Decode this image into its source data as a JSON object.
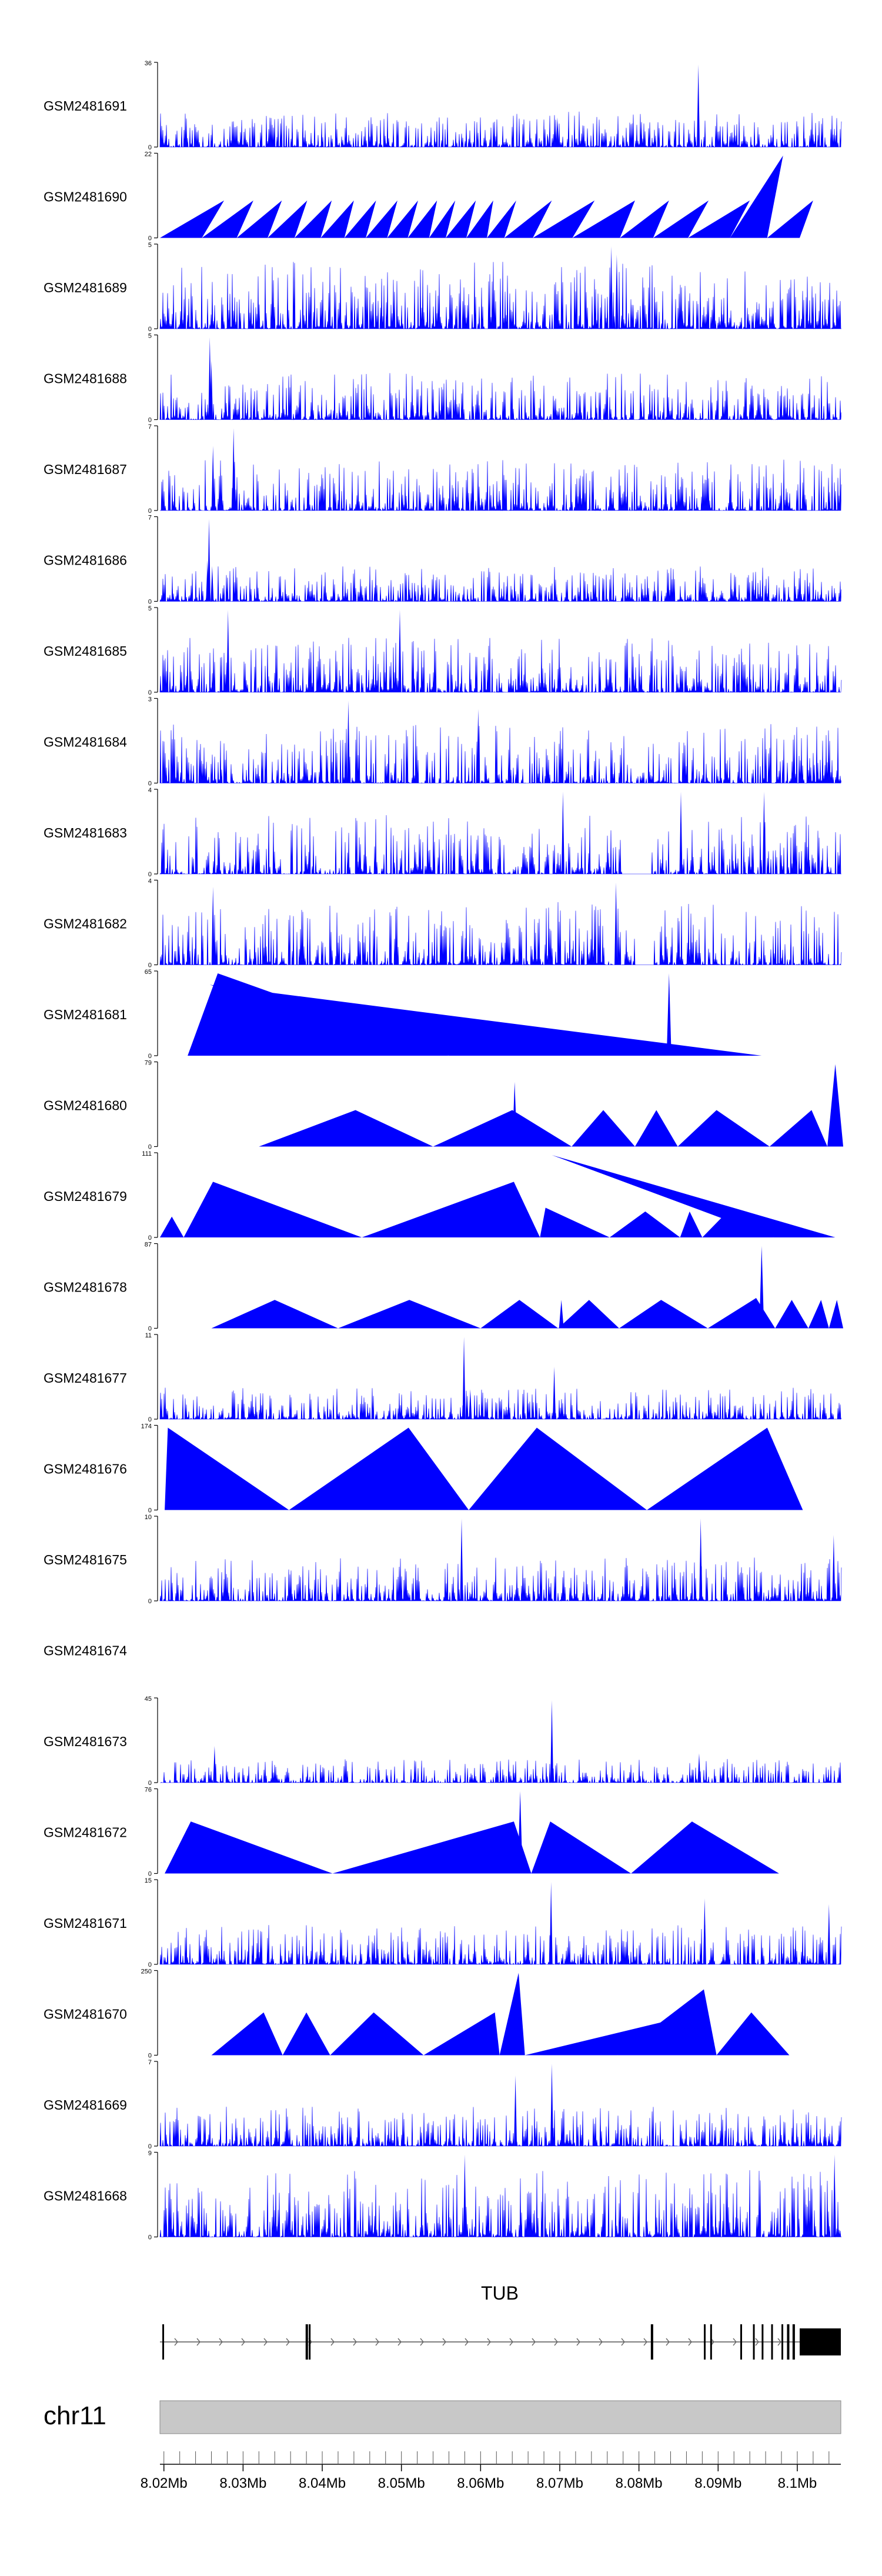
{
  "gene": {
    "name": "TUB"
  },
  "chromosome": "chr11",
  "axis": {
    "ticks": [
      "8.02Mb",
      "8.03Mb",
      "8.04Mb",
      "8.05Mb",
      "8.06Mb",
      "8.07Mb",
      "8.08Mb",
      "8.09Mb",
      "8.1Mb"
    ]
  },
  "colors": {
    "signal": "#0000ff",
    "ideogram": "#c8c8c8",
    "gene": "#000000"
  },
  "chart_data": {
    "type": "area",
    "title": "Coverage tracks over TUB locus",
    "xlabel": "",
    "xlim": [
      8.0195,
      8.1055
    ],
    "x_unit": "Mb",
    "tracks": [
      {
        "name": "GSM2481691",
        "ymax": 36,
        "ymin": 0,
        "style": "noise",
        "density": 1.0,
        "fill": 0.45,
        "peaks": [
          {
            "x": 8.0697,
            "y": 13
          },
          {
            "x": 8.0875,
            "y": 36
          },
          {
            "x": 8.0685,
            "y": 5
          }
        ]
      },
      {
        "name": "GSM2481690",
        "ymax": 22,
        "ymin": 0,
        "style": "tri",
        "breaks": [
          8.0195,
          8.0248,
          8.0292,
          8.0331,
          8.0365,
          8.0398,
          8.0428,
          8.0455,
          8.0482,
          8.0508,
          8.0535,
          8.0556,
          8.0582,
          8.0608,
          8.063,
          8.0666,
          8.0716,
          8.0776,
          8.0818,
          8.0862,
          8.0915,
          8.0962,
          8.1003,
          8.1048
        ],
        "peaks": [
          {
            "x": 8.0276,
            "y": 10
          },
          {
            "x": 8.0313,
            "y": 10
          },
          {
            "x": 8.0349,
            "y": 10
          },
          {
            "x": 8.0381,
            "y": 10
          },
          {
            "x": 8.0412,
            "y": 10
          },
          {
            "x": 8.044,
            "y": 10
          },
          {
            "x": 8.0468,
            "y": 10
          },
          {
            "x": 8.0495,
            "y": 10
          },
          {
            "x": 8.0521,
            "y": 10
          },
          {
            "x": 8.0545,
            "y": 10
          },
          {
            "x": 8.0568,
            "y": 10
          },
          {
            "x": 8.0594,
            "y": 10
          },
          {
            "x": 8.0616,
            "y": 10
          },
          {
            "x": 8.0645,
            "y": 10
          },
          {
            "x": 8.069,
            "y": 10
          },
          {
            "x": 8.0744,
            "y": 10
          },
          {
            "x": 8.0795,
            "y": 10
          },
          {
            "x": 8.0838,
            "y": 10
          },
          {
            "x": 8.0888,
            "y": 10
          },
          {
            "x": 8.094,
            "y": 10
          },
          {
            "x": 8.0982,
            "y": 22
          },
          {
            "x": 8.102,
            "y": 10
          }
        ]
      },
      {
        "name": "GSM2481689",
        "ymax": 5,
        "ymin": 0,
        "style": "noise",
        "density": 1.0,
        "fill": 0.85,
        "peaks": [
          {
            "x": 8.0765,
            "y": 5
          },
          {
            "x": 8.0772,
            "y": 4.5
          }
        ]
      },
      {
        "name": "GSM2481688",
        "ymax": 5,
        "ymin": 0,
        "style": "noise",
        "density": 1.0,
        "fill": 0.6,
        "peaks": [
          {
            "x": 8.0258,
            "y": 5
          },
          {
            "x": 8.026,
            "y": 3.6
          }
        ]
      },
      {
        "name": "GSM2481687",
        "ymax": 7,
        "ymin": 0,
        "style": "noise",
        "density": 1.0,
        "fill": 0.65,
        "peaks": [
          {
            "x": 8.0288,
            "y": 7
          },
          {
            "x": 8.0262,
            "y": 5.5
          }
        ]
      },
      {
        "name": "GSM2481686",
        "ymax": 7,
        "ymin": 0,
        "style": "noise",
        "density": 1.0,
        "fill": 0.45,
        "peaks": [
          {
            "x": 8.0257,
            "y": 7
          },
          {
            "x": 8.0255,
            "y": 3.5
          },
          {
            "x": 8.0261,
            "y": 3
          }
        ]
      },
      {
        "name": "GSM2481685",
        "ymax": 5,
        "ymin": 0,
        "style": "noise",
        "density": 1.0,
        "fill": 0.7,
        "peaks": [
          {
            "x": 8.0281,
            "y": 5
          },
          {
            "x": 8.0498,
            "y": 5
          }
        ]
      },
      {
        "name": "GSM2481684",
        "ymax": 3,
        "ymin": 0,
        "style": "noise",
        "density": 0.95,
        "fill": 0.75,
        "peaks": [
          {
            "x": 8.0433,
            "y": 3
          },
          {
            "x": 8.0597,
            "y": 2.7
          }
        ]
      },
      {
        "name": "GSM2481683",
        "ymax": 4,
        "ymin": 0,
        "style": "noise",
        "density": 0.92,
        "fill": 0.75,
        "gaps": [
          [
            8.0778,
            8.0815
          ]
        ],
        "peaks": [
          {
            "x": 8.0704,
            "y": 4
          },
          {
            "x": 8.0853,
            "y": 4
          },
          {
            "x": 8.0958,
            "y": 4
          }
        ]
      },
      {
        "name": "GSM2481682",
        "ymax": 4,
        "ymin": 0,
        "style": "noise",
        "density": 0.95,
        "fill": 0.8,
        "gaps": [
          [
            8.0796,
            8.0818
          ]
        ],
        "peaks": [
          {
            "x": 8.0771,
            "y": 4
          },
          {
            "x": 8.0262,
            "y": 3.8
          }
        ]
      },
      {
        "name": "GSM2481681",
        "ymax": 65,
        "ymin": 0,
        "style": "tri",
        "breaks": [
          8.023,
          8.056,
          8.0955
        ],
        "peaks": [
          {
            "x": 8.0268,
            "y": 65
          },
          {
            "x": 8.0258,
            "y": 56
          },
          {
            "x": 8.0838,
            "y": 65
          }
        ]
      },
      {
        "name": "GSM2481680",
        "ymax": 79,
        "ymin": 0,
        "style": "tri",
        "breaks": [
          8.032,
          8.054,
          8.0715,
          8.0795,
          8.0849,
          8.0965,
          8.1038,
          8.1058
        ],
        "peaks": [
          {
            "x": 8.0442,
            "y": 35
          },
          {
            "x": 8.064,
            "y": 35
          },
          {
            "x": 8.0755,
            "y": 35
          },
          {
            "x": 8.0822,
            "y": 35
          },
          {
            "x": 8.0898,
            "y": 35
          },
          {
            "x": 8.1018,
            "y": 35
          },
          {
            "x": 8.1048,
            "y": 79
          },
          {
            "x": 8.0443,
            "y": 22
          },
          {
            "x": 8.0643,
            "y": 62
          }
        ]
      },
      {
        "name": "GSM2481679",
        "ymax": 111,
        "ymin": 0,
        "style": "tri",
        "breaks": [
          8.0195,
          8.0225,
          8.045,
          8.0675,
          8.0763,
          8.0852,
          8.088,
          8.097,
          8.1048
        ],
        "peaks": [
          {
            "x": 8.021,
            "y": 28
          },
          {
            "x": 8.0262,
            "y": 75
          },
          {
            "x": 8.0642,
            "y": 75
          },
          {
            "x": 8.0682,
            "y": 40
          },
          {
            "x": 8.0808,
            "y": 35
          },
          {
            "x": 8.0864,
            "y": 35
          },
          {
            "x": 8.0912,
            "y": 35
          },
          {
            "x": 8.069,
            "y": 111
          }
        ]
      },
      {
        "name": "GSM2481678",
        "ymax": 87,
        "ymin": 0,
        "style": "tri",
        "breaks": [
          8.026,
          8.042,
          8.06,
          8.0698,
          8.0775,
          8.0887,
          8.0972,
          8.1014,
          8.104,
          8.1058
        ],
        "peaks": [
          {
            "x": 8.034,
            "y": 30
          },
          {
            "x": 8.051,
            "y": 30
          },
          {
            "x": 8.0649,
            "y": 30
          },
          {
            "x": 8.0737,
            "y": 30
          },
          {
            "x": 8.0828,
            "y": 30
          },
          {
            "x": 8.0948,
            "y": 32
          },
          {
            "x": 8.0993,
            "y": 30
          },
          {
            "x": 8.103,
            "y": 30
          },
          {
            "x": 8.105,
            "y": 30
          },
          {
            "x": 8.0955,
            "y": 87
          },
          {
            "x": 8.0702,
            "y": 30
          }
        ]
      },
      {
        "name": "GSM2481677",
        "ymax": 11,
        "ymin": 0,
        "style": "noise",
        "density": 1.0,
        "fill": 0.4,
        "peaks": [
          {
            "x": 8.0579,
            "y": 11
          },
          {
            "x": 8.0693,
            "y": 7
          },
          {
            "x": 8.0587,
            "y": 4
          }
        ]
      },
      {
        "name": "GSM2481676",
        "ymax": 174,
        "ymin": 0,
        "style": "tri",
        "breaks": [
          8.0201,
          8.0358,
          8.0585,
          8.081,
          8.1007
        ],
        "peaks": [
          {
            "x": 8.0205,
            "y": 174
          },
          {
            "x": 8.0509,
            "y": 174
          },
          {
            "x": 8.0671,
            "y": 174
          },
          {
            "x": 8.0962,
            "y": 174
          }
        ]
      },
      {
        "name": "GSM2481675",
        "ymax": 10,
        "ymin": 0,
        "style": "noise",
        "density": 1.0,
        "fill": 0.55,
        "peaks": [
          {
            "x": 8.0576,
            "y": 10
          },
          {
            "x": 8.0878,
            "y": 10
          },
          {
            "x": 8.1046,
            "y": 8
          }
        ]
      },
      {
        "name": "GSM2481674",
        "empty": true
      },
      {
        "name": "GSM2481673",
        "ymax": 45,
        "ymin": 0,
        "style": "noise",
        "density": 0.9,
        "fill": 0.3,
        "peaks": [
          {
            "x": 8.069,
            "y": 45
          },
          {
            "x": 8.0264,
            "y": 20
          },
          {
            "x": 8.0876,
            "y": 16
          }
        ]
      },
      {
        "name": "GSM2481672",
        "ymax": 76,
        "ymin": 0,
        "style": "tri",
        "breaks": [
          8.0201,
          8.0413,
          8.0664,
          8.079,
          8.0977
        ],
        "peaks": [
          {
            "x": 8.0234,
            "y": 48
          },
          {
            "x": 8.0642,
            "y": 48
          },
          {
            "x": 8.0688,
            "y": 48
          },
          {
            "x": 8.0867,
            "y": 48
          },
          {
            "x": 8.065,
            "y": 76
          }
        ]
      },
      {
        "name": "GSM2481671",
        "ymax": 15,
        "ymin": 0,
        "style": "noise",
        "density": 1.0,
        "fill": 0.5,
        "peaks": [
          {
            "x": 8.0689,
            "y": 15
          },
          {
            "x": 8.0883,
            "y": 12
          },
          {
            "x": 8.104,
            "y": 11
          }
        ]
      },
      {
        "name": "GSM2481670",
        "ymax": 250,
        "ymin": 0,
        "style": "tri",
        "breaks": [
          8.026,
          8.035,
          8.041,
          8.0528,
          8.0624,
          8.0656,
          8.0773,
          8.0898,
          8.099
        ],
        "peaks": [
          {
            "x": 8.0326,
            "y": 130
          },
          {
            "x": 8.038,
            "y": 130
          },
          {
            "x": 8.0465,
            "y": 130
          },
          {
            "x": 8.0618,
            "y": 130
          },
          {
            "x": 8.0648,
            "y": 250
          },
          {
            "x": 8.088,
            "y": 130
          },
          {
            "x": 8.0882,
            "y": 200
          },
          {
            "x": 8.0942,
            "y": 130
          }
        ]
      },
      {
        "name": "GSM2481669",
        "ymax": 7,
        "ymin": 0,
        "style": "noise",
        "density": 1.0,
        "fill": 0.5,
        "peaks": [
          {
            "x": 8.069,
            "y": 7
          },
          {
            "x": 8.0644,
            "y": 6
          }
        ]
      },
      {
        "name": "GSM2481668",
        "ymax": 9,
        "ymin": 0,
        "style": "noise",
        "density": 1.0,
        "fill": 0.85,
        "peaks": [
          {
            "x": 8.058,
            "y": 9
          },
          {
            "x": 8.1047,
            "y": 9
          }
        ]
      }
    ]
  },
  "gene_model": {
    "start": 8.0195,
    "end": 8.1055,
    "exons": [
      [
        8.0198,
        8.02
      ],
      [
        8.0379,
        8.0382
      ],
      [
        8.0383,
        8.0384
      ],
      [
        8.0815,
        8.0818
      ],
      [
        8.0882,
        8.0884
      ],
      [
        8.089,
        8.0891
      ],
      [
        8.0928,
        8.093
      ],
      [
        8.0944,
        8.0946
      ],
      [
        8.0955,
        8.0957
      ],
      [
        8.0967,
        8.0969
      ],
      [
        8.098,
        8.0982
      ],
      [
        8.0987,
        8.099
      ],
      [
        8.0994,
        8.0997
      ],
      [
        8.1003,
        8.1055
      ]
    ],
    "utr_tall": [
      [
        8.1003,
        8.1055
      ]
    ]
  }
}
